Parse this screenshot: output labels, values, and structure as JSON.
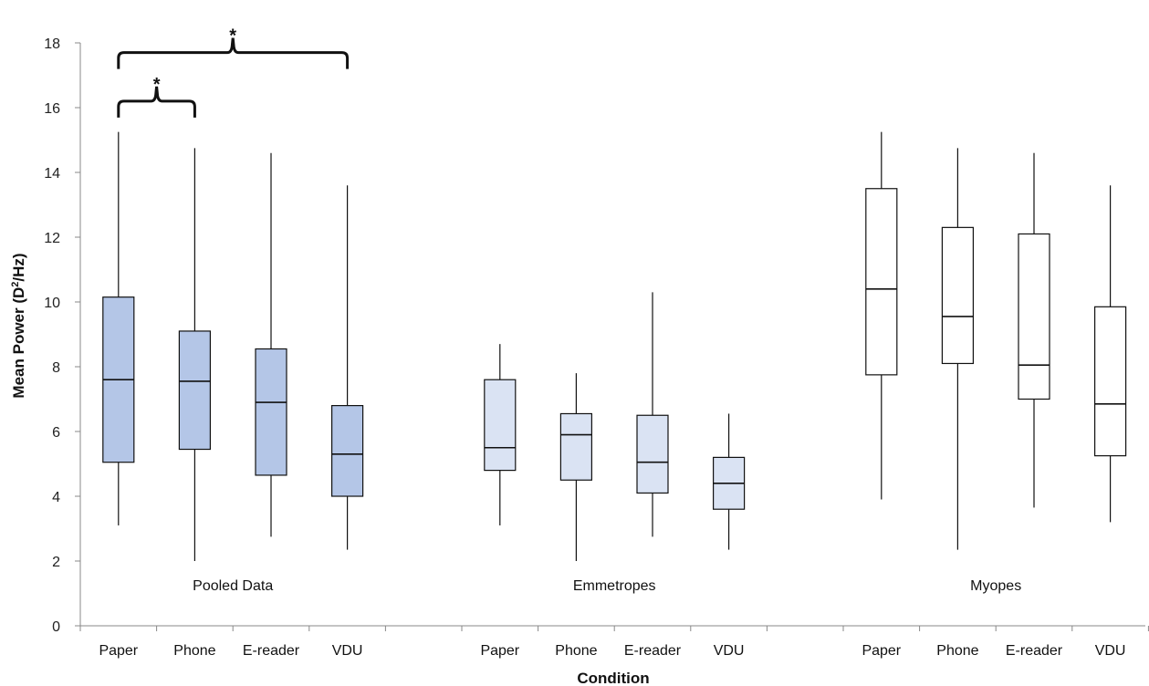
{
  "chart_data": {
    "type": "boxplot",
    "xlabel": "Condition",
    "ylabel_main": "Mean Power (D",
    "ylabel_sup": "2",
    "ylabel_end": "/Hz)",
    "ylim": [
      0,
      18
    ],
    "yticks": [
      0,
      2,
      4,
      6,
      8,
      10,
      12,
      14,
      16,
      18
    ],
    "gridlines": false,
    "categories": [
      "Paper",
      "Phone",
      "E-reader",
      "VDU"
    ],
    "groups": [
      {
        "label": "Pooled Data",
        "color": "#b4c6e7",
        "boxes": [
          {
            "category": "Paper",
            "min": 3.1,
            "q1": 5.05,
            "median": 7.6,
            "q3": 10.15,
            "max": 15.25
          },
          {
            "category": "Phone",
            "min": 2.0,
            "q1": 5.45,
            "median": 7.55,
            "q3": 9.1,
            "max": 14.75
          },
          {
            "category": "E-reader",
            "min": 2.75,
            "q1": 4.65,
            "median": 6.9,
            "q3": 8.55,
            "max": 14.6
          },
          {
            "category": "VDU",
            "min": 2.35,
            "q1": 4.0,
            "median": 5.3,
            "q3": 6.8,
            "max": 13.6
          }
        ]
      },
      {
        "label": "Emmetropes",
        "color": "#dae3f3",
        "boxes": [
          {
            "category": "Paper",
            "min": 3.1,
            "q1": 4.8,
            "median": 5.5,
            "q3": 7.6,
            "max": 8.7
          },
          {
            "category": "Phone",
            "min": 2.0,
            "q1": 4.5,
            "median": 5.9,
            "q3": 6.55,
            "max": 7.8
          },
          {
            "category": "E-reader",
            "min": 2.75,
            "q1": 4.1,
            "median": 5.05,
            "q3": 6.5,
            "max": 10.3
          },
          {
            "category": "VDU",
            "min": 2.35,
            "q1": 3.6,
            "median": 4.4,
            "q3": 5.2,
            "max": 6.55
          }
        ]
      },
      {
        "label": "Myopes",
        "color": "#ffffff",
        "boxes": [
          {
            "category": "Paper",
            "min": 3.9,
            "q1": 7.75,
            "median": 10.4,
            "q3": 13.5,
            "max": 15.25
          },
          {
            "category": "Phone",
            "min": 2.35,
            "q1": 8.1,
            "median": 9.55,
            "q3": 12.3,
            "max": 14.75
          },
          {
            "category": "E-reader",
            "min": 3.65,
            "q1": 7.0,
            "median": 8.05,
            "q3": 12.1,
            "max": 14.6
          },
          {
            "category": "VDU",
            "min": 3.2,
            "q1": 5.25,
            "median": 6.85,
            "q3": 9.85,
            "max": 13.6
          }
        ]
      }
    ],
    "significance": [
      {
        "group": 0,
        "from": 0,
        "to": 1,
        "level": 16.2,
        "label": "*"
      },
      {
        "group": 0,
        "from": 0,
        "to": 3,
        "level": 17.7,
        "label": "*"
      }
    ]
  }
}
